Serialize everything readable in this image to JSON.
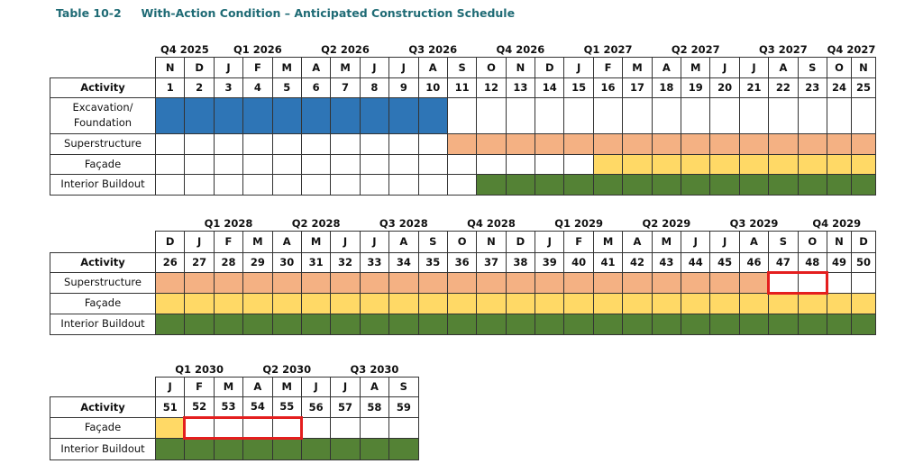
{
  "title": "Table 10-2     With-Action Condition – Anticipated Construction Schedule",
  "activity_header": "Activity",
  "colors": {
    "excavation": "#2e75b6",
    "superstructure": "#f4b183",
    "facade": "#ffd966",
    "interior": "#548235",
    "highlight": "#e41e1e",
    "title": "#1f6b75"
  },
  "tables": [
    {
      "quarters": [
        {
          "label": "Q4 2025",
          "span": 2
        },
        {
          "label": "Q1 2026",
          "span": 3
        },
        {
          "label": "Q2 2026",
          "span": 3
        },
        {
          "label": "Q3 2026",
          "span": 3
        },
        {
          "label": "Q4 2026",
          "span": 3
        },
        {
          "label": "Q1 2027",
          "span": 3
        },
        {
          "label": "Q2 2027",
          "span": 3
        },
        {
          "label": "Q3 2027",
          "span": 3
        },
        {
          "label": "Q4 2027",
          "span": 2
        }
      ],
      "months": [
        "N",
        "D",
        "J",
        "F",
        "M",
        "A",
        "M",
        "J",
        "J",
        "A",
        "S",
        "O",
        "N",
        "D",
        "J",
        "F",
        "M",
        "A",
        "M",
        "J",
        "J",
        "A",
        "S",
        "O",
        "N"
      ],
      "start": 1,
      "rows": [
        {
          "label": "Excavation/ Foundation",
          "key": "excavation",
          "from": 1,
          "to": 10
        },
        {
          "label": "Superstructure",
          "key": "superstructure",
          "from": 11,
          "to": 25
        },
        {
          "label": "Façade",
          "key": "facade",
          "from": 16,
          "to": 25
        },
        {
          "label": "Interior Buildout",
          "key": "interior",
          "from": 12,
          "to": 25
        }
      ],
      "highlights": []
    },
    {
      "quarters": [
        {
          "label": "",
          "span": 1
        },
        {
          "label": "Q1 2028",
          "span": 3
        },
        {
          "label": "Q2 2028",
          "span": 3
        },
        {
          "label": "Q3 2028",
          "span": 3
        },
        {
          "label": "Q4 2028",
          "span": 3
        },
        {
          "label": "Q1 2029",
          "span": 3
        },
        {
          "label": "Q2 2029",
          "span": 3
        },
        {
          "label": "Q3 2029",
          "span": 3
        },
        {
          "label": "Q4 2029",
          "span": 3
        }
      ],
      "months": [
        "D",
        "J",
        "F",
        "M",
        "A",
        "M",
        "J",
        "J",
        "A",
        "S",
        "O",
        "N",
        "D",
        "J",
        "F",
        "M",
        "A",
        "M",
        "J",
        "J",
        "A",
        "S",
        "O",
        "N",
        "D"
      ],
      "start": 26,
      "rows": [
        {
          "label": "Superstructure",
          "key": "superstructure",
          "from": 26,
          "to": 46
        },
        {
          "label": "Façade",
          "key": "facade",
          "from": 26,
          "to": 50
        },
        {
          "label": "Interior Buildout",
          "key": "interior",
          "from": 26,
          "to": 50
        }
      ],
      "highlights": [
        {
          "row": 0,
          "from": 47,
          "to": 48
        }
      ]
    },
    {
      "quarters": [
        {
          "label": "Q1 2030",
          "span": 3
        },
        {
          "label": "Q2 2030",
          "span": 3
        },
        {
          "label": "Q3 2030",
          "span": 3
        }
      ],
      "months": [
        "J",
        "F",
        "M",
        "A",
        "M",
        "J",
        "J",
        "A",
        "S"
      ],
      "start": 51,
      "rows": [
        {
          "label": "Façade",
          "key": "facade",
          "from": 51,
          "to": 51
        },
        {
          "label": "Interior Buildout",
          "key": "interior",
          "from": 51,
          "to": 59
        }
      ],
      "highlights": [
        {
          "row": 0,
          "from": 52,
          "to": 55
        }
      ]
    }
  ]
}
